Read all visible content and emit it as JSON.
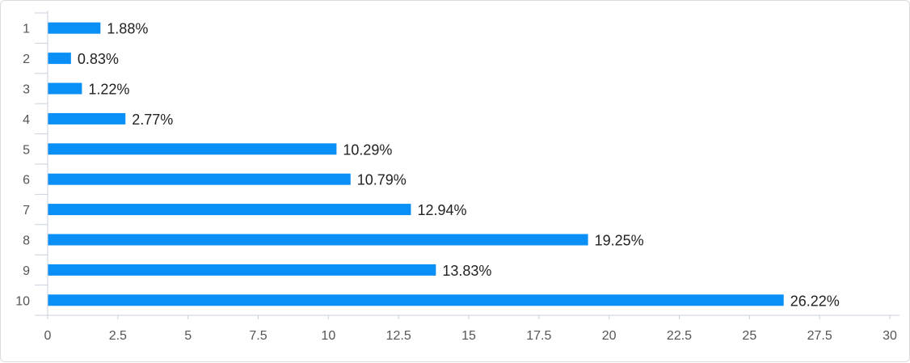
{
  "chart_data": {
    "type": "bar",
    "orientation": "horizontal",
    "categories": [
      "1",
      "2",
      "3",
      "4",
      "5",
      "6",
      "7",
      "8",
      "9",
      "10"
    ],
    "values": [
      1.88,
      0.83,
      1.22,
      2.77,
      10.29,
      10.79,
      12.94,
      19.25,
      13.83,
      26.22
    ],
    "data_labels": [
      "1.88%",
      "0.83%",
      "1.22%",
      "2.77%",
      "10.29%",
      "10.79%",
      "12.94%",
      "19.25%",
      "13.83%",
      "26.22%"
    ],
    "x_ticks": [
      "0",
      "2.5",
      "5",
      "7.5",
      "10",
      "12.5",
      "15",
      "17.5",
      "20",
      "22.5",
      "25",
      "27.5",
      "30"
    ],
    "xlim": [
      0,
      30
    ],
    "title": "",
    "xlabel": "",
    "ylabel": "",
    "grid": false,
    "legend": "none",
    "colors": {
      "bar": "#0a8ff7",
      "axis": "#c8d2dc",
      "text": "#555555",
      "label": "#222222"
    }
  }
}
